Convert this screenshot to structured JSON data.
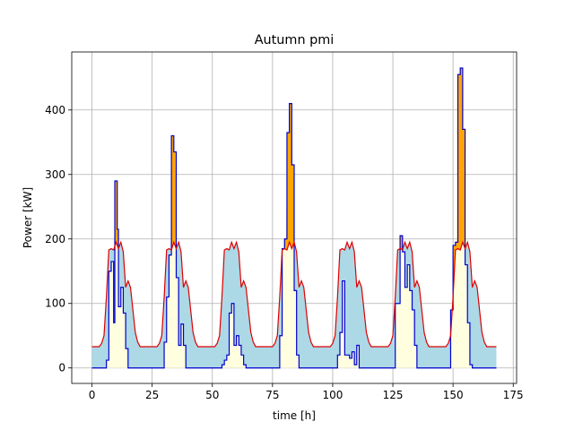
{
  "chart_data": {
    "type": "area",
    "title": "Autumn pmi",
    "xlabel": "time [h]",
    "ylabel": "Power [kW]",
    "xlim": [
      -8.4,
      176.4
    ],
    "ylim": [
      -24,
      490
    ],
    "xticks": [
      0,
      25,
      50,
      75,
      100,
      125,
      150,
      175
    ],
    "yticks": [
      0,
      100,
      200,
      300,
      400
    ],
    "grid": true,
    "colors": {
      "load_line": "#0000cc",
      "supply_line": "#dd0000",
      "deficit_fill": "#ffa500",
      "surplus_fill": "#add8e6",
      "base_fill": "#ffffe0",
      "grid": "#b0b0b0"
    },
    "series": [
      {
        "key": "red",
        "points": [
          [
            0,
            33
          ],
          [
            1,
            33
          ],
          [
            2,
            33
          ],
          [
            3,
            33
          ],
          [
            4,
            38
          ],
          [
            5,
            50
          ],
          [
            6,
            110
          ],
          [
            7,
            183
          ],
          [
            8,
            185
          ],
          [
            9,
            183
          ],
          [
            10,
            195
          ],
          [
            11,
            185
          ],
          [
            12,
            195
          ],
          [
            13,
            180
          ],
          [
            14,
            125
          ],
          [
            15,
            135
          ],
          [
            16,
            125
          ],
          [
            17,
            90
          ],
          [
            18,
            55
          ],
          [
            19,
            40
          ],
          [
            20,
            33
          ],
          [
            21,
            33
          ],
          [
            22,
            33
          ],
          [
            23,
            33
          ],
          [
            24,
            33
          ],
          [
            25,
            33
          ],
          [
            26,
            33
          ],
          [
            27,
            33
          ],
          [
            28,
            38
          ],
          [
            29,
            50
          ],
          [
            30,
            110
          ],
          [
            31,
            183
          ],
          [
            32,
            185
          ],
          [
            33,
            183
          ],
          [
            34,
            195
          ],
          [
            35,
            185
          ],
          [
            36,
            195
          ],
          [
            37,
            180
          ],
          [
            38,
            125
          ],
          [
            39,
            135
          ],
          [
            40,
            125
          ],
          [
            41,
            90
          ],
          [
            42,
            55
          ],
          [
            43,
            40
          ],
          [
            44,
            33
          ],
          [
            45,
            33
          ],
          [
            46,
            33
          ],
          [
            47,
            33
          ],
          [
            48,
            33
          ],
          [
            49,
            33
          ],
          [
            50,
            33
          ],
          [
            51,
            33
          ],
          [
            52,
            38
          ],
          [
            53,
            50
          ],
          [
            54,
            110
          ],
          [
            55,
            183
          ],
          [
            56,
            185
          ],
          [
            57,
            183
          ],
          [
            58,
            195
          ],
          [
            59,
            185
          ],
          [
            60,
            195
          ],
          [
            61,
            180
          ],
          [
            62,
            125
          ],
          [
            63,
            135
          ],
          [
            64,
            125
          ],
          [
            65,
            90
          ],
          [
            66,
            55
          ],
          [
            67,
            40
          ],
          [
            68,
            33
          ],
          [
            69,
            33
          ],
          [
            70,
            33
          ],
          [
            71,
            33
          ],
          [
            72,
            33
          ],
          [
            73,
            33
          ],
          [
            74,
            33
          ],
          [
            75,
            33
          ],
          [
            76,
            38
          ],
          [
            77,
            50
          ],
          [
            78,
            110
          ],
          [
            79,
            183
          ],
          [
            80,
            185
          ],
          [
            81,
            183
          ],
          [
            82,
            195
          ],
          [
            83,
            185
          ],
          [
            84,
            195
          ],
          [
            85,
            180
          ],
          [
            86,
            125
          ],
          [
            87,
            135
          ],
          [
            88,
            125
          ],
          [
            89,
            90
          ],
          [
            90,
            55
          ],
          [
            91,
            40
          ],
          [
            92,
            33
          ],
          [
            93,
            33
          ],
          [
            94,
            33
          ],
          [
            95,
            33
          ],
          [
            96,
            33
          ],
          [
            97,
            33
          ],
          [
            98,
            33
          ],
          [
            99,
            33
          ],
          [
            100,
            38
          ],
          [
            101,
            50
          ],
          [
            102,
            110
          ],
          [
            103,
            183
          ],
          [
            104,
            185
          ],
          [
            105,
            183
          ],
          [
            106,
            195
          ],
          [
            107,
            185
          ],
          [
            108,
            195
          ],
          [
            109,
            180
          ],
          [
            110,
            125
          ],
          [
            111,
            135
          ],
          [
            112,
            125
          ],
          [
            113,
            90
          ],
          [
            114,
            55
          ],
          [
            115,
            40
          ],
          [
            116,
            33
          ],
          [
            117,
            33
          ],
          [
            118,
            33
          ],
          [
            119,
            33
          ],
          [
            120,
            33
          ],
          [
            121,
            33
          ],
          [
            122,
            33
          ],
          [
            123,
            33
          ],
          [
            124,
            38
          ],
          [
            125,
            50
          ],
          [
            126,
            110
          ],
          [
            127,
            183
          ],
          [
            128,
            185
          ],
          [
            129,
            183
          ],
          [
            130,
            195
          ],
          [
            131,
            185
          ],
          [
            132,
            195
          ],
          [
            133,
            180
          ],
          [
            134,
            125
          ],
          [
            135,
            135
          ],
          [
            136,
            125
          ],
          [
            137,
            90
          ],
          [
            138,
            55
          ],
          [
            139,
            40
          ],
          [
            140,
            33
          ],
          [
            141,
            33
          ],
          [
            142,
            33
          ],
          [
            143,
            33
          ],
          [
            144,
            33
          ],
          [
            145,
            33
          ],
          [
            146,
            33
          ],
          [
            147,
            33
          ],
          [
            148,
            38
          ],
          [
            149,
            50
          ],
          [
            150,
            110
          ],
          [
            151,
            183
          ],
          [
            152,
            185
          ],
          [
            153,
            183
          ],
          [
            154,
            195
          ],
          [
            155,
            185
          ],
          [
            156,
            195
          ],
          [
            157,
            180
          ],
          [
            158,
            125
          ],
          [
            159,
            135
          ],
          [
            160,
            125
          ],
          [
            161,
            90
          ],
          [
            162,
            55
          ],
          [
            163,
            40
          ],
          [
            164,
            33
          ],
          [
            165,
            33
          ],
          [
            166,
            33
          ],
          [
            167,
            33
          ],
          [
            168,
            33
          ]
        ]
      },
      {
        "key": "blue",
        "points": [
          [
            0,
            0
          ],
          [
            6,
            0
          ],
          [
            6,
            12
          ],
          [
            7,
            12
          ],
          [
            7,
            150
          ],
          [
            8,
            150
          ],
          [
            8,
            165
          ],
          [
            9,
            165
          ],
          [
            9,
            70
          ],
          [
            9.5,
            70
          ],
          [
            9.5,
            290
          ],
          [
            10.5,
            290
          ],
          [
            10.5,
            215
          ],
          [
            11,
            215
          ],
          [
            11,
            95
          ],
          [
            12,
            95
          ],
          [
            12,
            125
          ],
          [
            13,
            125
          ],
          [
            13,
            85
          ],
          [
            14,
            85
          ],
          [
            14,
            30
          ],
          [
            15,
            30
          ],
          [
            15,
            0
          ],
          [
            30,
            0
          ],
          [
            30,
            40
          ],
          [
            31,
            40
          ],
          [
            31,
            110
          ],
          [
            32,
            110
          ],
          [
            32,
            175
          ],
          [
            33,
            175
          ],
          [
            33,
            360
          ],
          [
            34,
            360
          ],
          [
            34,
            335
          ],
          [
            35,
            335
          ],
          [
            35,
            140
          ],
          [
            36,
            140
          ],
          [
            36,
            35
          ],
          [
            37,
            35
          ],
          [
            37,
            68
          ],
          [
            38,
            68
          ],
          [
            38,
            35
          ],
          [
            39,
            35
          ],
          [
            39,
            0
          ],
          [
            54,
            0
          ],
          [
            54,
            5
          ],
          [
            55,
            5
          ],
          [
            55,
            12
          ],
          [
            56,
            12
          ],
          [
            56,
            20
          ],
          [
            57,
            20
          ],
          [
            57,
            85
          ],
          [
            58,
            85
          ],
          [
            58,
            100
          ],
          [
            59,
            100
          ],
          [
            59,
            35
          ],
          [
            60,
            35
          ],
          [
            60,
            50
          ],
          [
            61,
            50
          ],
          [
            61,
            35
          ],
          [
            62,
            35
          ],
          [
            62,
            20
          ],
          [
            63,
            20
          ],
          [
            63,
            5
          ],
          [
            64,
            5
          ],
          [
            64,
            0
          ],
          [
            78,
            0
          ],
          [
            78,
            50
          ],
          [
            79,
            50
          ],
          [
            79,
            185
          ],
          [
            80,
            185
          ],
          [
            80,
            200
          ],
          [
            81,
            200
          ],
          [
            81,
            365
          ],
          [
            82,
            365
          ],
          [
            82,
            410
          ],
          [
            83,
            410
          ],
          [
            83,
            315
          ],
          [
            84,
            315
          ],
          [
            84,
            120
          ],
          [
            85,
            120
          ],
          [
            85,
            20
          ],
          [
            86,
            20
          ],
          [
            86,
            0
          ],
          [
            102,
            0
          ],
          [
            102,
            20
          ],
          [
            103,
            20
          ],
          [
            103,
            55
          ],
          [
            104,
            55
          ],
          [
            104,
            135
          ],
          [
            105,
            135
          ],
          [
            105,
            20
          ],
          [
            106,
            20
          ],
          [
            106,
            20
          ],
          [
            107,
            20
          ],
          [
            107,
            15
          ],
          [
            108,
            15
          ],
          [
            108,
            25
          ],
          [
            109,
            25
          ],
          [
            109,
            5
          ],
          [
            110,
            5
          ],
          [
            110,
            35
          ],
          [
            111,
            35
          ],
          [
            111,
            0
          ],
          [
            126,
            0
          ],
          [
            126,
            100
          ],
          [
            127,
            100
          ],
          [
            127,
            100
          ],
          [
            128,
            100
          ],
          [
            128,
            205
          ],
          [
            129,
            205
          ],
          [
            129,
            180
          ],
          [
            130,
            180
          ],
          [
            130,
            125
          ],
          [
            131,
            125
          ],
          [
            131,
            160
          ],
          [
            132,
            160
          ],
          [
            132,
            120
          ],
          [
            133,
            120
          ],
          [
            133,
            90
          ],
          [
            134,
            90
          ],
          [
            134,
            35
          ],
          [
            135,
            35
          ],
          [
            135,
            0
          ],
          [
            149,
            0
          ],
          [
            149,
            90
          ],
          [
            150,
            90
          ],
          [
            150,
            190
          ],
          [
            151,
            190
          ],
          [
            151,
            195
          ],
          [
            152,
            195
          ],
          [
            152,
            455
          ],
          [
            153,
            455
          ],
          [
            153,
            465
          ],
          [
            154,
            465
          ],
          [
            154,
            370
          ],
          [
            155,
            370
          ],
          [
            155,
            160
          ],
          [
            156,
            160
          ],
          [
            156,
            70
          ],
          [
            157,
            70
          ],
          [
            157,
            5
          ],
          [
            158,
            5
          ],
          [
            158,
            0
          ],
          [
            168,
            0
          ]
        ]
      }
    ]
  }
}
